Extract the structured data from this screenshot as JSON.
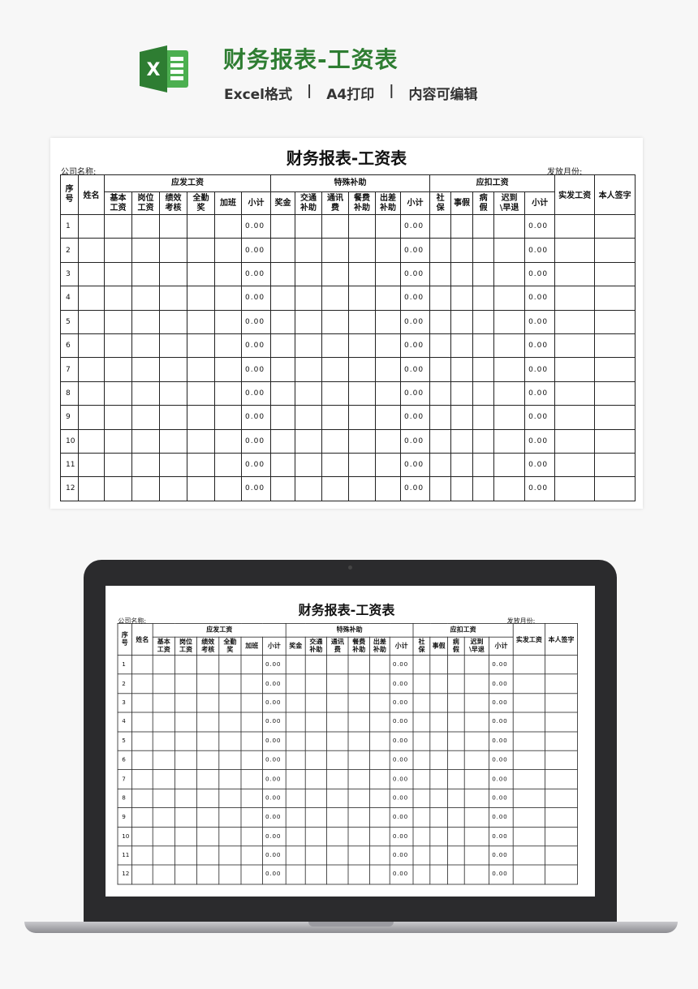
{
  "header": {
    "title": "财务报表-工资表",
    "tags": [
      "Excel格式",
      "|",
      "A4打印",
      "|",
      "内容可编辑"
    ],
    "logo_icon": "excel-icon",
    "accent": "#2e7d32"
  },
  "sheet": {
    "title": "财务报表-工资表",
    "company_label": "公司名称:",
    "month_label": "发放月份:",
    "col_no": "序号",
    "col_name": "姓名",
    "groups": [
      "应发工资",
      "特殊补助",
      "应扣工资"
    ],
    "col_net": "实发工资",
    "col_sign": "本人签字",
    "sub_headers": [
      "基本工资",
      "岗位工资",
      "绩效考核",
      "全勤奖",
      "加班",
      "小计",
      "奖金",
      "交通补助",
      "通讯费",
      "餐费补助",
      "出差补助",
      "小计",
      "社保",
      "事假",
      "病假",
      "迟到\\早退",
      "小计"
    ],
    "rows": [
      {
        "no": "1",
        "s1": "0.00",
        "s2": "0.00",
        "s3": "0.00"
      },
      {
        "no": "2",
        "s1": "0.00",
        "s2": "0.00",
        "s3": "0.00"
      },
      {
        "no": "3",
        "s1": "0.00",
        "s2": "0.00",
        "s3": "0.00"
      },
      {
        "no": "4",
        "s1": "0.00",
        "s2": "0.00",
        "s3": "0.00"
      },
      {
        "no": "5",
        "s1": "0.00",
        "s2": "0.00",
        "s3": "0.00"
      },
      {
        "no": "6",
        "s1": "0.00",
        "s2": "0.00",
        "s3": "0.00"
      },
      {
        "no": "7",
        "s1": "0.00",
        "s2": "0.00",
        "s3": "0.00"
      },
      {
        "no": "8",
        "s1": "0.00",
        "s2": "0.00",
        "s3": "0.00"
      },
      {
        "no": "9",
        "s1": "0.00",
        "s2": "0.00",
        "s3": "0.00"
      },
      {
        "no": "10",
        "s1": "0.00",
        "s2": "0.00",
        "s3": "0.00"
      },
      {
        "no": "11",
        "s1": "0.00",
        "s2": "0.00",
        "s3": "0.00"
      },
      {
        "no": "12",
        "s1": "0.00",
        "s2": "0.00",
        "s3": "0.00"
      }
    ]
  }
}
